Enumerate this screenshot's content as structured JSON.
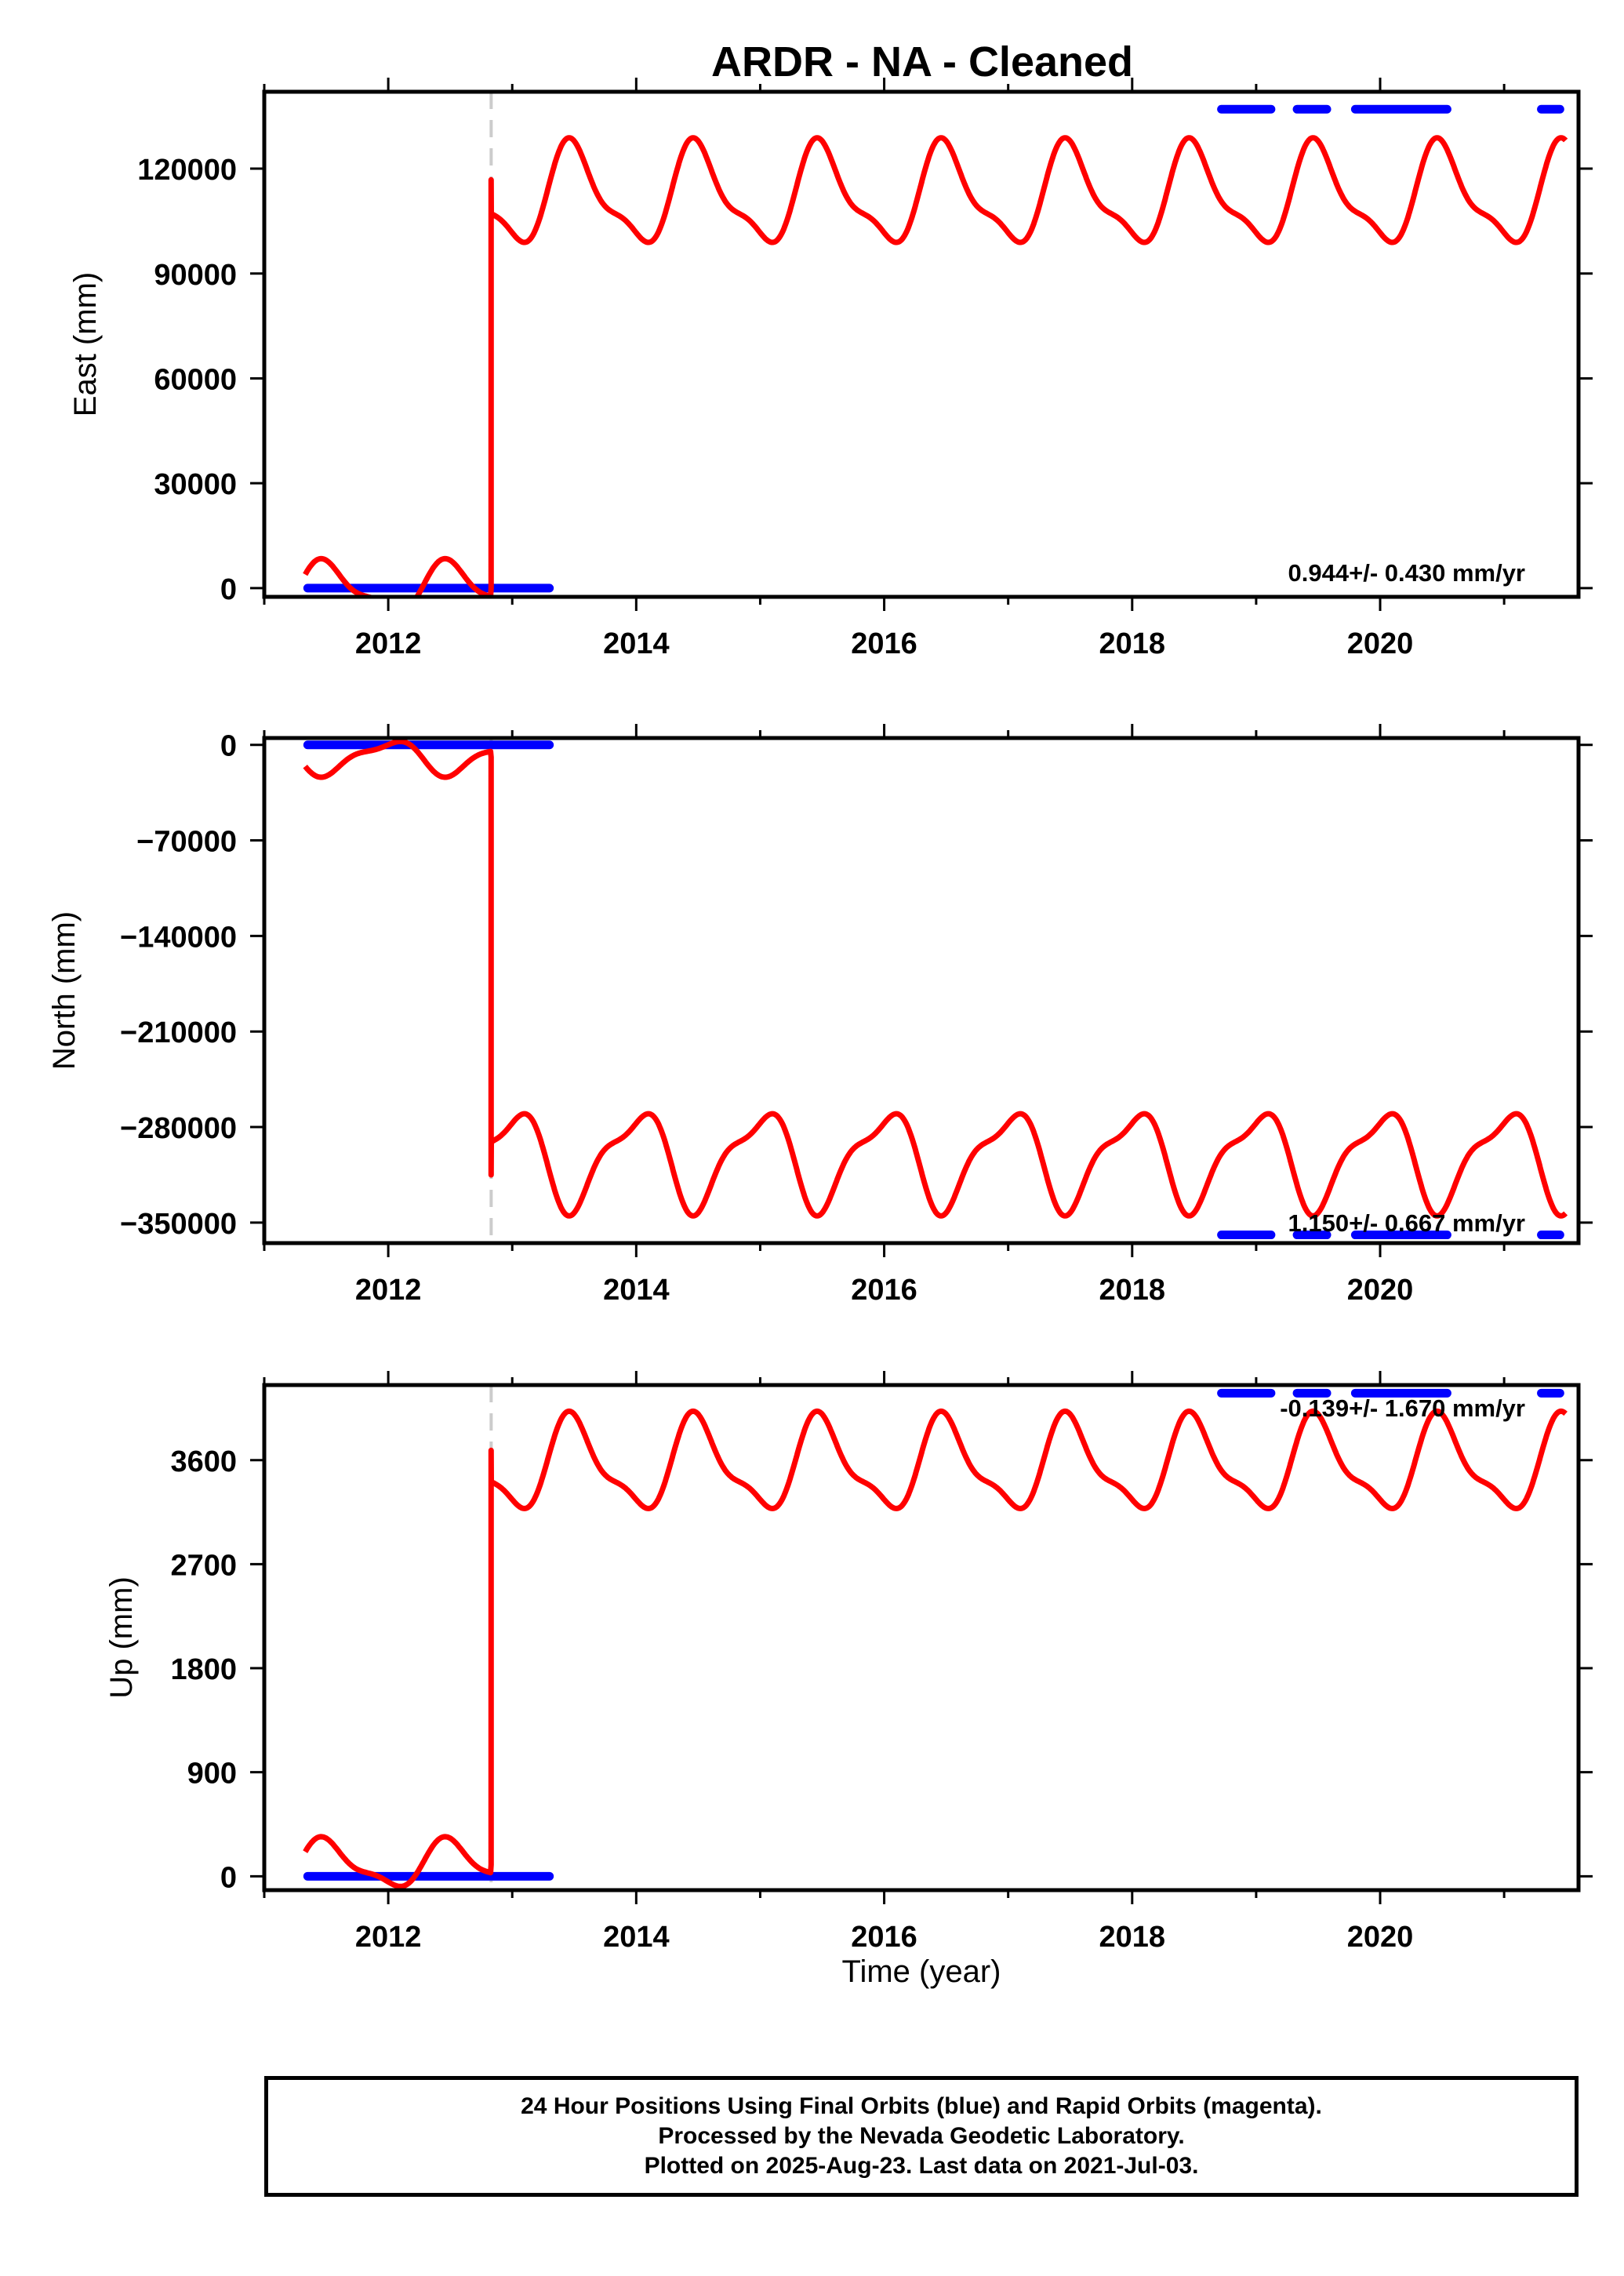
{
  "chart_data": [
    {
      "type": "scatter",
      "title": "ARDR  - NA - Cleaned",
      "xlabel": "",
      "ylabel": "East (mm)",
      "xlim": [
        2011.0,
        2021.6
      ],
      "ylim": [
        -2500,
        142000
      ],
      "x_ticks": [
        2012,
        2014,
        2016,
        2018,
        2020
      ],
      "y_ticks": [
        0,
        30000,
        60000,
        90000,
        120000
      ],
      "y_tick_labels": [
        "0",
        "30000",
        "60000",
        "90000",
        "120000"
      ],
      "rate_label": "0.944+/- 0.430 mm/yr",
      "offset_epoch": 2012.83,
      "series": [
        {
          "color": "#0000ff",
          "segments": [
            [
              2011.35,
              2013.3
            ]
          ],
          "value": 0
        },
        {
          "color": "#0000ff",
          "segments": [
            [
              2018.72,
              2019.12
            ],
            [
              2019.33,
              2019.57
            ],
            [
              2019.8,
              2020.54
            ],
            [
              2021.3,
              2021.45
            ]
          ],
          "value": 137000
        },
        {
          "color": "#ff0000",
          "model": {
            "base": [
              0,
              112000
            ],
            "amplitude": [
              8000,
              16000
            ],
            "jump_at": 2012.83
          }
        }
      ]
    },
    {
      "type": "scatter",
      "xlabel": "",
      "ylabel": "North (mm)",
      "xlim": [
        2011.0,
        2021.6
      ],
      "ylim": [
        -365000,
        5000
      ],
      "x_ticks": [
        2012,
        2014,
        2016,
        2018,
        2020
      ],
      "y_ticks": [
        0,
        -70000,
        -140000,
        -210000,
        -280000,
        -350000
      ],
      "y_tick_labels": [
        "0",
        "−70000",
        "−140000",
        "−210000",
        "−280000",
        "−350000"
      ],
      "rate_label": "1.150+/- 0.667 mm/yr",
      "offset_epoch": 2012.83,
      "series": [
        {
          "color": "#0000ff",
          "segments": [
            [
              2011.35,
              2013.3
            ]
          ],
          "value": 0
        },
        {
          "color": "#0000ff",
          "segments": [
            [
              2018.72,
              2019.12
            ],
            [
              2019.33,
              2019.57
            ],
            [
              2019.8,
              2020.54
            ],
            [
              2021.3,
              2021.45
            ]
          ],
          "value": -359000
        },
        {
          "color": "#ff0000",
          "model": {
            "base": [
              -9000,
              -303000
            ],
            "amplitude": [
              -14000,
              -40000
            ],
            "jump_at": 2012.83
          }
        }
      ]
    },
    {
      "type": "scatter",
      "xlabel": "Time (year)",
      "ylabel": "Up (mm)",
      "xlim": [
        2011.0,
        2021.6
      ],
      "ylim": [
        -120,
        4250
      ],
      "x_ticks": [
        2012,
        2014,
        2016,
        2018,
        2020
      ],
      "y_ticks": [
        0,
        900,
        1800,
        2700,
        3600
      ],
      "y_tick_labels": [
        "0",
        "900",
        "1800",
        "2700",
        "3600"
      ],
      "rate_label": "-0.139+/- 1.670 mm/yr",
      "offset_epoch": 2012.83,
      "series": [
        {
          "color": "#0000ff",
          "segments": [
            [
              2011.35,
              2013.3
            ]
          ],
          "value": 0
        },
        {
          "color": "#0000ff",
          "segments": [
            [
              2018.72,
              2019.12
            ],
            [
              2019.33,
              2019.57
            ],
            [
              2019.8,
              2020.54
            ],
            [
              2021.3,
              2021.45
            ]
          ],
          "value": 4180
        },
        {
          "color": "#ff0000",
          "model": {
            "base": [
              100,
              3550
            ],
            "amplitude": [
              230,
              450
            ],
            "jump_at": 2012.83
          }
        }
      ]
    }
  ],
  "footer": {
    "line1": "24 Hour Positions Using Final Orbits (blue) and Rapid Orbits (magenta).",
    "line2": "Processed by the Nevada Geodetic Laboratory.",
    "line3": "Plotted on 2025-Aug-23. Last data on 2021-Jul-03."
  }
}
